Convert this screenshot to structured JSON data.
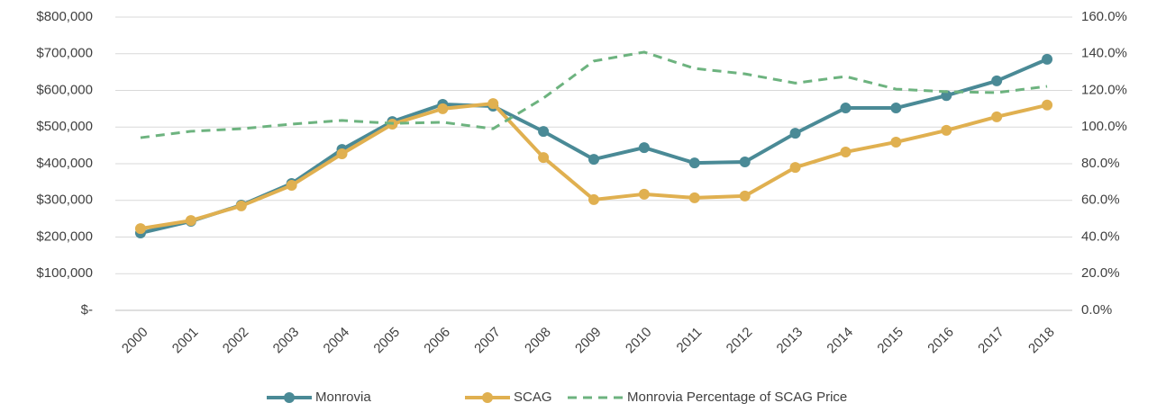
{
  "chart_data": {
    "type": "line",
    "categories": [
      "2000",
      "2001",
      "2002",
      "2003",
      "2004",
      "2005",
      "2006",
      "2007",
      "2008",
      "2009",
      "2010",
      "2011",
      "2012",
      "2013",
      "2014",
      "2015",
      "2016",
      "2017",
      "2018"
    ],
    "series": [
      {
        "name": "Monrovia",
        "color": "#4a8a96",
        "values": [
          211000,
          243000,
          287000,
          346000,
          439000,
          515000,
          562000,
          557000,
          488000,
          412000,
          444000,
          402000,
          405000,
          483000,
          552000,
          552000,
          586000,
          626000,
          685000
        ]
      },
      {
        "name": "SCAG",
        "color": "#e0b050",
        "values": [
          223000,
          245000,
          285000,
          341000,
          427000,
          508000,
          550000,
          564000,
          417000,
          302000,
          317000,
          307000,
          312000,
          390000,
          432000,
          459000,
          491000,
          528000,
          560000
        ]
      },
      {
        "name": "Monrovia Percentage of SCAG Price",
        "color": "#6db37f",
        "dashed": true,
        "axis": "y2",
        "values": [
          94.2,
          97.7,
          99.1,
          101.6,
          103.6,
          102,
          102.6,
          99.1,
          115.8,
          136,
          140.9,
          132,
          129,
          124,
          127.6,
          120.7,
          119.3,
          118.8,
          122.2
        ]
      }
    ],
    "ylim": [
      0,
      800000
    ],
    "yticks": [
      {
        "value": 0,
        "label": "$-"
      },
      {
        "value": 100000,
        "label": "$100,000"
      },
      {
        "value": 200000,
        "label": "$200,000"
      },
      {
        "value": 300000,
        "label": "$300,000"
      },
      {
        "value": 400000,
        "label": "$400,000"
      },
      {
        "value": 500000,
        "label": "$500,000"
      },
      {
        "value": 600000,
        "label": "$600,000"
      },
      {
        "value": 700000,
        "label": "$700,000"
      },
      {
        "value": 800000,
        "label": "$800,000"
      }
    ],
    "y2lim": [
      0,
      160
    ],
    "y2ticks": [
      {
        "value": 0,
        "label": "0.0%"
      },
      {
        "value": 20,
        "label": "20.0%"
      },
      {
        "value": 40,
        "label": "40.0%"
      },
      {
        "value": 60,
        "label": "60.0%"
      },
      {
        "value": 80,
        "label": "80.0%"
      },
      {
        "value": 100,
        "label": "100.0%"
      },
      {
        "value": 120,
        "label": "120.0%"
      },
      {
        "value": 140,
        "label": "140.0%"
      },
      {
        "value": 160,
        "label": "160.0%"
      }
    ],
    "grid": true,
    "legend": "bottom"
  }
}
